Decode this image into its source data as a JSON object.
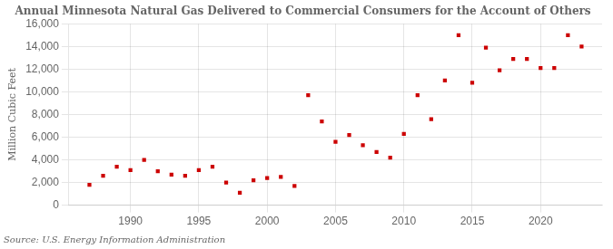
{
  "chart_data": {
    "type": "scatter",
    "title": "Annual Minnesota Natural Gas Delivered to Commercial Consumers for the Account of Others",
    "ylabel": "Million Cubic Feet",
    "annotation": "Source: U.S. Energy Information Administration",
    "color": "#cc0000",
    "marker": "square",
    "grid": true,
    "xlim": [
      1985.5,
      2024.5
    ],
    "xticks": [
      1990,
      1995,
      2000,
      2005,
      2010,
      2015,
      2020
    ],
    "ylim": [
      0,
      16000
    ],
    "yticks": [
      0,
      {
        "value": 2000,
        "label": "2,000"
      },
      {
        "value": 4000,
        "label": "4,000"
      },
      {
        "value": 6000,
        "label": "6,000"
      },
      {
        "value": 8000,
        "label": "8,000"
      },
      {
        "value": 10000,
        "label": "10,000"
      },
      {
        "value": 12000,
        "label": "12,000"
      },
      {
        "value": 14000,
        "label": "14,000"
      },
      {
        "value": 16000,
        "label": "16,000"
      }
    ],
    "x": [
      1987,
      1988,
      1989,
      1990,
      1991,
      1992,
      1993,
      1994,
      1995,
      1996,
      1997,
      1998,
      1999,
      2000,
      2001,
      2002,
      2003,
      2004,
      2005,
      2006,
      2007,
      2008,
      2009,
      2010,
      2011,
      2012,
      2013,
      2014,
      2015,
      2016,
      2017,
      2018,
      2019,
      2020,
      2021,
      2022,
      2023
    ],
    "values": [
      1800,
      2600,
      3400,
      3100,
      4000,
      3000,
      2700,
      2600,
      3100,
      3400,
      2000,
      1100,
      2200,
      2400,
      2500,
      1700,
      9700,
      7400,
      5600,
      6200,
      5300,
      4700,
      4200,
      6300,
      9700,
      7600,
      11000,
      15000,
      10800,
      13900,
      11900,
      12900,
      12900,
      12100,
      12100,
      15000,
      14000
    ]
  }
}
